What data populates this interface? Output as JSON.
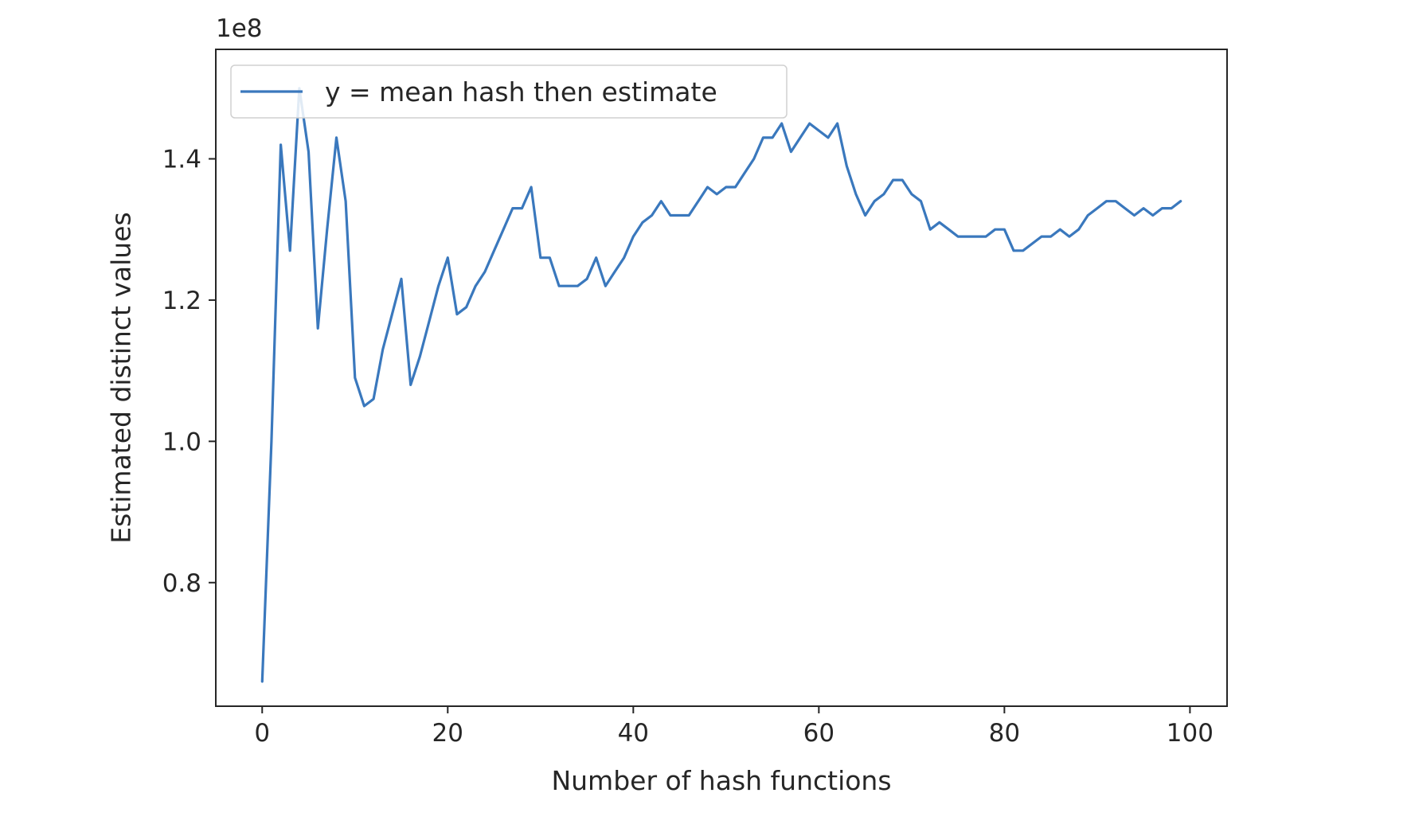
{
  "chart_data": {
    "type": "line",
    "title": "",
    "xlabel": "Number of hash functions",
    "ylabel": "Estimated distinct values",
    "y_offset_label": "1e8",
    "xlim": [
      -5,
      104
    ],
    "ylim": [
      0.625,
      1.555
    ],
    "x_ticks": [
      0,
      20,
      40,
      60,
      80,
      100
    ],
    "x_tick_labels": [
      "0",
      "20",
      "40",
      "60",
      "80",
      "100"
    ],
    "y_ticks": [
      0.8,
      1.0,
      1.2,
      1.4
    ],
    "y_tick_labels": [
      "0.8",
      "1.0",
      "1.2",
      "1.4"
    ],
    "grid": false,
    "legend": {
      "position": "upper left"
    },
    "colors": {
      "series": "#3a78bd",
      "axes": "#262626"
    },
    "series": [
      {
        "name": "y = mean hash then estimate",
        "x": [
          0,
          1,
          2,
          3,
          4,
          5,
          6,
          7,
          8,
          9,
          10,
          11,
          12,
          13,
          14,
          15,
          16,
          17,
          18,
          19,
          20,
          21,
          22,
          23,
          24,
          25,
          26,
          27,
          28,
          29,
          30,
          31,
          32,
          33,
          34,
          35,
          36,
          37,
          38,
          39,
          40,
          41,
          42,
          43,
          44,
          45,
          46,
          47,
          48,
          49,
          50,
          51,
          52,
          53,
          54,
          55,
          56,
          57,
          58,
          59,
          60,
          61,
          62,
          63,
          64,
          65,
          66,
          67,
          68,
          69,
          70,
          71,
          72,
          73,
          74,
          75,
          76,
          77,
          78,
          79,
          80,
          81,
          82,
          83,
          84,
          85,
          86,
          87,
          88,
          89,
          90,
          91,
          92,
          93,
          94,
          95,
          96,
          97,
          98,
          99
        ],
        "values": [
          0.66,
          1.0,
          1.42,
          1.27,
          1.5,
          1.41,
          1.16,
          1.3,
          1.43,
          1.34,
          1.09,
          1.05,
          1.06,
          1.13,
          1.18,
          1.23,
          1.08,
          1.12,
          1.17,
          1.22,
          1.26,
          1.18,
          1.19,
          1.22,
          1.24,
          1.27,
          1.3,
          1.33,
          1.33,
          1.36,
          1.26,
          1.26,
          1.22,
          1.22,
          1.22,
          1.23,
          1.26,
          1.22,
          1.24,
          1.26,
          1.29,
          1.31,
          1.32,
          1.34,
          1.32,
          1.32,
          1.32,
          1.34,
          1.36,
          1.35,
          1.36,
          1.36,
          1.38,
          1.4,
          1.43,
          1.43,
          1.45,
          1.41,
          1.43,
          1.45,
          1.44,
          1.43,
          1.45,
          1.39,
          1.35,
          1.32,
          1.34,
          1.35,
          1.37,
          1.37,
          1.35,
          1.34,
          1.3,
          1.31,
          1.3,
          1.29,
          1.29,
          1.29,
          1.29,
          1.3,
          1.3,
          1.27,
          1.27,
          1.28,
          1.29,
          1.29,
          1.3,
          1.29,
          1.3,
          1.32,
          1.33,
          1.34,
          1.34,
          1.33,
          1.32,
          1.33,
          1.32,
          1.33,
          1.33,
          1.34
        ]
      }
    ]
  }
}
